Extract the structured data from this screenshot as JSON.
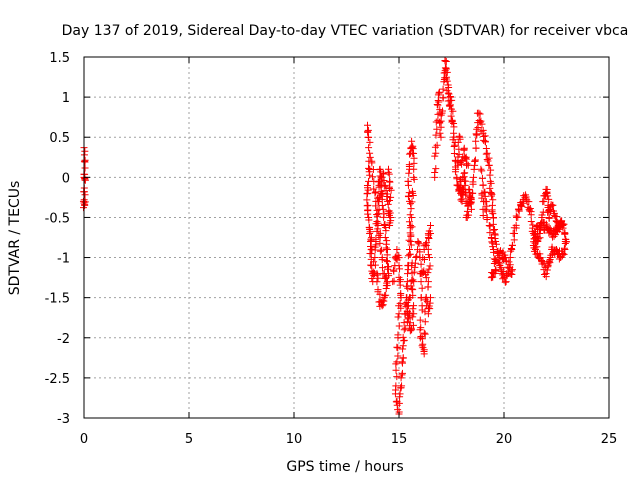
{
  "chart_data": {
    "type": "scatter",
    "title": "Day 137 of 2019, Sidereal Day-to-day VTEC variation (SDTVAR) for receiver vbca",
    "xlabel": "GPS time / hours",
    "ylabel": "SDTVAR / TECUs",
    "xlim": [
      0,
      25
    ],
    "ylim": [
      -3,
      1.5
    ],
    "xticks": [
      0,
      5,
      10,
      15,
      20,
      25
    ],
    "xtick_labels": [
      "0",
      "5",
      "10",
      "15",
      "20",
      "25"
    ],
    "yticks": [
      -3,
      -2.5,
      -2,
      -1.5,
      -1,
      -0.5,
      0,
      0.5,
      1,
      1.5
    ],
    "ytick_labels": [
      "-3",
      "-2.5",
      "-2",
      "-1.5",
      "-1",
      "-0.5",
      "0",
      "0.5",
      "1",
      "1.5"
    ],
    "grid": true,
    "marker": "+",
    "color": "#ff0000",
    "series": [
      {
        "name": "SDTVAR",
        "points": [
          [
            0.0,
            0.37
          ],
          [
            0.02,
            0.2
          ],
          [
            0.0,
            0.0
          ],
          [
            0.03,
            -0.01
          ],
          [
            0.02,
            -0.18
          ],
          [
            0.0,
            -0.32
          ],
          [
            0.03,
            -0.35
          ],
          [
            13.5,
            0.65
          ],
          [
            13.55,
            0.5
          ],
          [
            13.6,
            0.3
          ],
          [
            13.6,
            0.1
          ],
          [
            13.55,
            -0.05
          ],
          [
            13.5,
            -0.2
          ],
          [
            13.52,
            -0.35
          ],
          [
            13.55,
            -0.5
          ],
          [
            13.6,
            -0.65
          ],
          [
            13.65,
            -0.8
          ],
          [
            13.62,
            -0.95
          ],
          [
            13.7,
            -1.1
          ],
          [
            13.75,
            -1.3
          ],
          [
            13.8,
            -1.2
          ],
          [
            13.85,
            -1.0
          ],
          [
            13.9,
            -0.8
          ],
          [
            13.95,
            -0.55
          ],
          [
            14.0,
            -0.3
          ],
          [
            14.05,
            -0.1
          ],
          [
            14.1,
            0.1
          ],
          [
            14.15,
            0.0
          ],
          [
            14.2,
            -0.2
          ],
          [
            14.25,
            -0.4
          ],
          [
            14.3,
            -0.6
          ],
          [
            14.35,
            -0.75
          ],
          [
            14.4,
            -0.9
          ],
          [
            14.45,
            -1.05
          ],
          [
            14.5,
            -1.2
          ],
          [
            14.4,
            -1.35
          ],
          [
            14.3,
            -1.5
          ],
          [
            14.2,
            -1.6
          ],
          [
            14.1,
            -1.55
          ],
          [
            14.0,
            -1.4
          ],
          [
            13.95,
            -1.2
          ],
          [
            14.05,
            -0.4
          ],
          [
            14.15,
            -0.2
          ],
          [
            14.25,
            0.05
          ],
          [
            14.35,
            -0.1
          ],
          [
            14.45,
            -0.3
          ],
          [
            14.5,
            -0.45
          ],
          [
            14.55,
            -0.6
          ],
          [
            14.6,
            -0.25
          ],
          [
            14.55,
            -0.05
          ],
          [
            14.5,
            0.1
          ],
          [
            14.6,
            -0.5
          ],
          [
            13.7,
            0.2
          ],
          [
            13.8,
            -0.05
          ],
          [
            13.9,
            -0.3
          ],
          [
            14.0,
            -0.6
          ],
          [
            14.1,
            -0.75
          ],
          [
            14.2,
            -1.0
          ],
          [
            14.3,
            -1.2
          ],
          [
            14.45,
            -1.3
          ],
          [
            13.6,
            -0.7
          ],
          [
            13.7,
            -0.9
          ],
          [
            14.7,
            -1.3
          ],
          [
            14.8,
            -1.1
          ],
          [
            14.9,
            -0.9
          ],
          [
            15.0,
            -1.1
          ],
          [
            15.05,
            -1.3
          ],
          [
            15.1,
            -1.5
          ],
          [
            15.0,
            -1.7
          ],
          [
            14.95,
            -2.0
          ],
          [
            14.9,
            -2.3
          ],
          [
            14.85,
            -2.6
          ],
          [
            14.9,
            -2.8
          ],
          [
            15.0,
            -2.95
          ],
          [
            15.05,
            -2.7
          ],
          [
            15.1,
            -2.5
          ],
          [
            15.15,
            -2.3
          ],
          [
            15.2,
            -2.1
          ],
          [
            15.25,
            -1.9
          ],
          [
            15.3,
            -1.7
          ],
          [
            15.35,
            -1.5
          ],
          [
            15.4,
            -1.3
          ],
          [
            15.45,
            -1.1
          ],
          [
            15.5,
            -0.9
          ],
          [
            15.55,
            -0.6
          ],
          [
            15.5,
            -0.3
          ],
          [
            15.45,
            -0.1
          ],
          [
            15.5,
            0.1
          ],
          [
            15.55,
            0.3
          ],
          [
            15.6,
            0.45
          ],
          [
            15.65,
            0.3
          ],
          [
            15.7,
            0.1
          ],
          [
            15.65,
            -0.2
          ],
          [
            15.6,
            -0.5
          ],
          [
            15.55,
            -0.8
          ],
          [
            15.6,
            -1.1
          ],
          [
            15.65,
            -1.4
          ],
          [
            15.7,
            -1.7
          ],
          [
            15.6,
            -1.9
          ],
          [
            15.5,
            -1.85
          ],
          [
            15.45,
            -1.6
          ],
          [
            15.4,
            -1.8
          ],
          [
            15.5,
            -1.5
          ],
          [
            15.7,
            -1.3
          ],
          [
            15.8,
            -1.0
          ],
          [
            15.9,
            -0.8
          ],
          [
            16.0,
            -1.0
          ],
          [
            16.05,
            -1.3
          ],
          [
            16.1,
            -1.6
          ],
          [
            16.0,
            -1.9
          ],
          [
            16.1,
            -2.1
          ],
          [
            16.2,
            -2.2
          ],
          [
            16.25,
            -1.8
          ],
          [
            16.3,
            -1.5
          ],
          [
            16.4,
            -1.3
          ],
          [
            16.45,
            -1.0
          ],
          [
            16.4,
            -0.75
          ],
          [
            16.5,
            -0.6
          ],
          [
            16.5,
            -1.5
          ],
          [
            16.4,
            -1.7
          ],
          [
            16.35,
            -1.55
          ],
          [
            16.3,
            -0.85
          ],
          [
            16.2,
            -0.9
          ],
          [
            16.1,
            -1.2
          ],
          [
            16.3,
            -1.25
          ],
          [
            16.5,
            -0.7
          ],
          [
            16.7,
            0.0
          ],
          [
            16.75,
            0.3
          ],
          [
            16.8,
            0.6
          ],
          [
            16.85,
            0.9
          ],
          [
            16.9,
            1.05
          ],
          [
            16.95,
            0.8
          ],
          [
            17.0,
            0.5
          ],
          [
            17.05,
            0.8
          ],
          [
            17.1,
            1.1
          ],
          [
            17.15,
            1.3
          ],
          [
            17.2,
            1.45
          ],
          [
            17.25,
            1.35
          ],
          [
            17.3,
            1.2
          ],
          [
            17.35,
            1.05
          ],
          [
            17.4,
            0.9
          ],
          [
            17.45,
            1.0
          ],
          [
            17.5,
            0.85
          ],
          [
            17.55,
            0.7
          ],
          [
            17.6,
            0.55
          ],
          [
            17.65,
            0.4
          ],
          [
            17.7,
            0.2
          ],
          [
            17.75,
            0.0
          ],
          [
            17.8,
            -0.1
          ],
          [
            17.85,
            -0.15
          ],
          [
            17.9,
            -0.05
          ],
          [
            17.95,
            -0.2
          ],
          [
            18.0,
            -0.3
          ],
          [
            18.05,
            -0.15
          ],
          [
            18.1,
            0.05
          ],
          [
            18.15,
            -0.1
          ],
          [
            18.2,
            -0.3
          ],
          [
            18.25,
            -0.5
          ],
          [
            18.3,
            -0.35
          ],
          [
            18.35,
            -0.15
          ],
          [
            18.4,
            -0.25
          ],
          [
            18.45,
            -0.4
          ],
          [
            18.5,
            -0.2
          ],
          [
            18.55,
            0.0
          ],
          [
            18.6,
            0.2
          ],
          [
            18.65,
            0.45
          ],
          [
            18.7,
            0.6
          ],
          [
            18.8,
            0.8
          ],
          [
            18.9,
            0.7
          ],
          [
            19.0,
            0.55
          ],
          [
            19.1,
            0.45
          ],
          [
            19.2,
            0.3
          ],
          [
            19.3,
            0.15
          ],
          [
            19.35,
            -0.05
          ],
          [
            19.4,
            -0.2
          ],
          [
            19.45,
            -0.35
          ],
          [
            19.5,
            -0.5
          ],
          [
            19.55,
            -0.65
          ],
          [
            19.6,
            -0.8
          ],
          [
            19.7,
            -0.95
          ],
          [
            19.8,
            -1.1
          ],
          [
            19.9,
            -1.2
          ],
          [
            20.0,
            -1.25
          ],
          [
            20.1,
            -1.3
          ],
          [
            20.2,
            -1.2
          ],
          [
            20.3,
            -1.0
          ],
          [
            20.4,
            -0.85
          ],
          [
            20.5,
            -0.7
          ],
          [
            20.6,
            -0.5
          ],
          [
            20.7,
            -0.4
          ],
          [
            20.8,
            -0.35
          ],
          [
            20.9,
            -0.3
          ],
          [
            21.0,
            -0.25
          ],
          [
            21.1,
            -0.3
          ],
          [
            21.2,
            -0.4
          ],
          [
            21.3,
            -0.55
          ],
          [
            21.4,
            -0.7
          ],
          [
            21.5,
            -0.75
          ],
          [
            21.6,
            -0.8
          ],
          [
            21.7,
            -0.7
          ],
          [
            21.8,
            -0.5
          ],
          [
            21.9,
            -0.3
          ],
          [
            22.0,
            -0.15
          ],
          [
            22.05,
            -0.2
          ],
          [
            22.1,
            -0.35
          ],
          [
            22.15,
            -0.5
          ],
          [
            22.2,
            -0.4
          ],
          [
            22.3,
            -0.35
          ],
          [
            22.4,
            -0.45
          ],
          [
            22.5,
            -0.55
          ],
          [
            22.6,
            -0.6
          ],
          [
            22.7,
            -0.55
          ],
          [
            22.8,
            -0.6
          ],
          [
            22.9,
            -0.7
          ],
          [
            22.95,
            -0.8
          ],
          [
            22.9,
            -0.9
          ],
          [
            22.8,
            -0.95
          ],
          [
            22.7,
            -1.0
          ],
          [
            22.6,
            -0.95
          ],
          [
            22.5,
            -0.9
          ],
          [
            22.4,
            -0.92
          ],
          [
            22.3,
            -0.9
          ],
          [
            22.2,
            -1.0
          ],
          [
            22.1,
            -1.1
          ],
          [
            22.0,
            -1.2
          ],
          [
            21.9,
            -1.15
          ],
          [
            21.8,
            -1.05
          ],
          [
            21.7,
            -1.0
          ],
          [
            21.6,
            -0.95
          ],
          [
            21.5,
            -0.9
          ],
          [
            21.4,
            -0.85
          ],
          [
            21.5,
            -0.7
          ],
          [
            21.6,
            -0.65
          ],
          [
            21.7,
            -0.6
          ],
          [
            21.8,
            -0.62
          ],
          [
            21.9,
            -0.6
          ],
          [
            22.0,
            -0.62
          ],
          [
            22.1,
            -0.65
          ],
          [
            22.2,
            -0.68
          ],
          [
            22.3,
            -0.7
          ],
          [
            22.4,
            -0.68
          ],
          [
            22.5,
            -0.65
          ],
          [
            22.6,
            -0.62
          ],
          [
            22.7,
            -0.6
          ],
          [
            22.8,
            -0.58
          ],
          [
            17.9,
            0.5
          ],
          [
            17.85,
            0.35
          ],
          [
            17.8,
            0.15
          ],
          [
            18.0,
            0.2
          ],
          [
            18.1,
            0.35
          ],
          [
            18.2,
            0.25
          ],
          [
            18.3,
            0.15
          ],
          [
            18.9,
            0.1
          ],
          [
            19.0,
            -0.1
          ],
          [
            19.1,
            -0.3
          ],
          [
            19.2,
            -0.5
          ],
          [
            19.0,
            -0.4
          ],
          [
            18.95,
            -0.2
          ],
          [
            19.3,
            -0.6
          ],
          [
            19.4,
            -0.75
          ],
          [
            19.5,
            -0.9
          ],
          [
            19.6,
            -1.05
          ],
          [
            19.5,
            -1.2
          ],
          [
            19.4,
            -1.25
          ],
          [
            19.6,
            -1.15
          ],
          [
            19.8,
            -1.0
          ],
          [
            19.9,
            -0.95
          ],
          [
            20.0,
            -1.0
          ],
          [
            20.1,
            -1.05
          ],
          [
            20.3,
            -1.2
          ],
          [
            20.4,
            -1.15
          ]
        ]
      }
    ]
  }
}
